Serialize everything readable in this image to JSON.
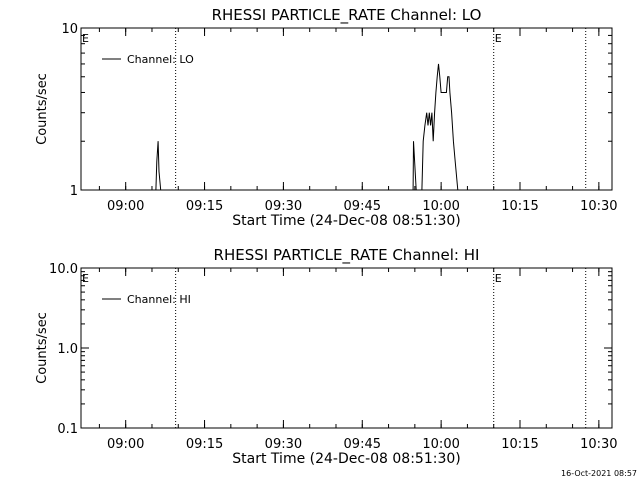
{
  "footer": {
    "timestamp": "16-Oct-2021 08:57"
  },
  "chart_data": [
    {
      "type": "line",
      "title": "RHESSI PARTICLE_RATE Channel: LO",
      "xlabel": "Start Time (24-Dec-08 08:51:30)",
      "ylabel": "Counts/sec",
      "yscale": "log",
      "ylim": [
        1,
        10
      ],
      "xlim": [
        "08:51:30",
        "10:32:30"
      ],
      "x_ticks": [
        "09:00",
        "09:15",
        "09:30",
        "09:45",
        "10:00",
        "10:15",
        "10:30"
      ],
      "y_ticks": [
        "1",
        "10"
      ],
      "legend": {
        "position": "top-left",
        "entries": [
          "Channel: LO"
        ]
      },
      "markers": [
        {
          "label": "E",
          "time": "08:51:30"
        },
        {
          "label": "",
          "time": "09:09:30"
        },
        {
          "label": "E",
          "time": "10:10:00"
        },
        {
          "label": "",
          "time": "10:27:30"
        }
      ],
      "series": [
        {
          "name": "Channel: LO",
          "points": [
            [
              "09:05:45",
              1
            ],
            [
              "09:05:55",
              1.5
            ],
            [
              "09:06:10",
              2
            ],
            [
              "09:06:20",
              1.3
            ],
            [
              "09:06:40",
              1
            ],
            [
              "09:54:40",
              1
            ],
            [
              "09:54:45",
              2
            ],
            [
              "09:55:15",
              1
            ],
            [
              "09:56:20",
              1
            ],
            [
              "09:56:35",
              2
            ],
            [
              "09:56:55",
              2.5
            ],
            [
              "09:57:15",
              3
            ],
            [
              "09:57:30",
              2.5
            ],
            [
              "09:57:45",
              3
            ],
            [
              "09:58:00",
              2.5
            ],
            [
              "09:58:15",
              3
            ],
            [
              "09:58:30",
              2
            ],
            [
              "09:58:45",
              3
            ],
            [
              "09:59:00",
              4
            ],
            [
              "09:59:15",
              5
            ],
            [
              "09:59:30",
              6
            ],
            [
              "09:59:45",
              5
            ],
            [
              "10:00:00",
              4
            ],
            [
              "10:00:15",
              4
            ],
            [
              "10:00:35",
              4
            ],
            [
              "10:01:00",
              4
            ],
            [
              "10:01:15",
              5
            ],
            [
              "10:01:30",
              5
            ],
            [
              "10:01:40",
              4
            ],
            [
              "10:02:00",
              3
            ],
            [
              "10:02:20",
              2
            ],
            [
              "10:02:40",
              1.5
            ],
            [
              "10:03:10",
              1
            ]
          ]
        }
      ]
    },
    {
      "type": "line",
      "title": "RHESSI PARTICLE_RATE Channel: HI",
      "xlabel": "Start Time (24-Dec-08 08:51:30)",
      "ylabel": "Counts/sec",
      "yscale": "log",
      "ylim": [
        0.1,
        10
      ],
      "xlim": [
        "08:51:30",
        "10:32:30"
      ],
      "x_ticks": [
        "09:00",
        "09:15",
        "09:30",
        "09:45",
        "10:00",
        "10:15",
        "10:30"
      ],
      "y_ticks": [
        "0.1",
        "1.0",
        "10.0"
      ],
      "legend": {
        "position": "top-left",
        "entries": [
          "Channel: HI"
        ]
      },
      "markers": [
        {
          "label": "E",
          "time": "08:51:30"
        },
        {
          "label": "",
          "time": "09:09:30"
        },
        {
          "label": "E",
          "time": "10:10:00"
        },
        {
          "label": "",
          "time": "10:27:30"
        }
      ],
      "series": [
        {
          "name": "Channel: HI",
          "points": []
        }
      ]
    }
  ]
}
